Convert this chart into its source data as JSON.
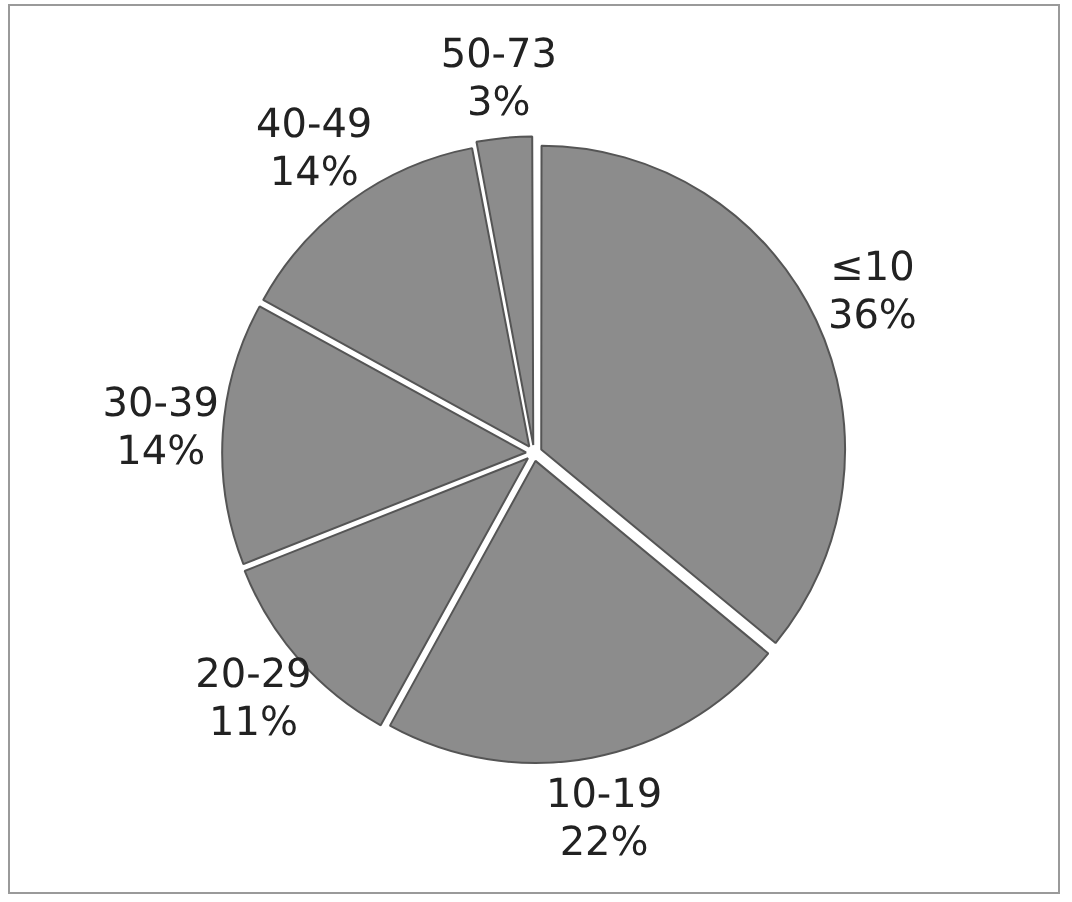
{
  "chart_data": {
    "type": "pie",
    "categories": [
      "≤10",
      "10-19",
      "20-29",
      "30-39",
      "40-49",
      "50-73"
    ],
    "values": [
      36,
      22,
      11,
      14,
      14,
      3
    ],
    "value_labels": [
      "36%",
      "22%",
      "11%",
      "14%",
      "14%",
      "3%"
    ],
    "colors": [
      "#8c8c8c",
      "#8c8c8c",
      "#8c8c8c",
      "#8c8c8c",
      "#8c8c8c",
      "#8c8c8c"
    ],
    "legend": false
  }
}
